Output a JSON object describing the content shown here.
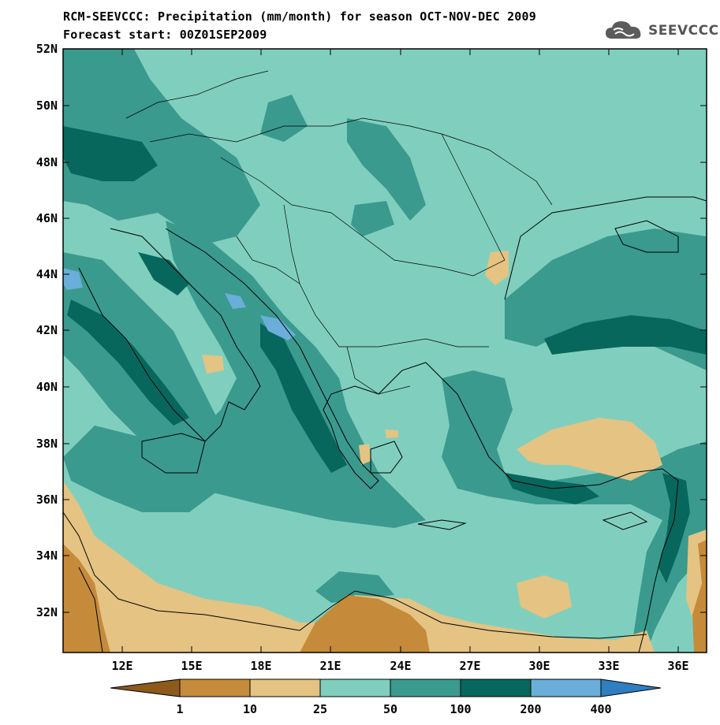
{
  "title_line1": "RCM-SEEVCCC: Precipitation (mm/month) for season OCT-NOV-DEC 2009",
  "title_line2": "Forecast start: 00Z01SEP2009",
  "logo_text": "SEEVCCC",
  "lat_labels": [
    "52N",
    "50N",
    "48N",
    "46N",
    "44N",
    "42N",
    "40N",
    "38N",
    "36N",
    "34N",
    "32N"
  ],
  "lon_labels": [
    "12E",
    "15E",
    "18E",
    "21E",
    "24E",
    "27E",
    "30E",
    "33E",
    "36E"
  ],
  "colorbar": {
    "labels": [
      "1",
      "10",
      "25",
      "50",
      "100",
      "200",
      "400"
    ],
    "colors": [
      "#8d5a1c",
      "#c58b3b",
      "#e4c383",
      "#80cfbe",
      "#3a9a8e",
      "#08675d",
      "#6aaed9",
      "#2f7fc0"
    ]
  },
  "legend_classes": {
    "lt1": "#8d5a1c",
    "c1_10": "#c58b3b",
    "c10_25": "#e4c383",
    "c25_50": "#80cfbe",
    "c50_100": "#3a9a8e",
    "c100_200": "#08675d",
    "c200_400": "#6aaed9",
    "gt400": "#2f7fc0"
  }
}
